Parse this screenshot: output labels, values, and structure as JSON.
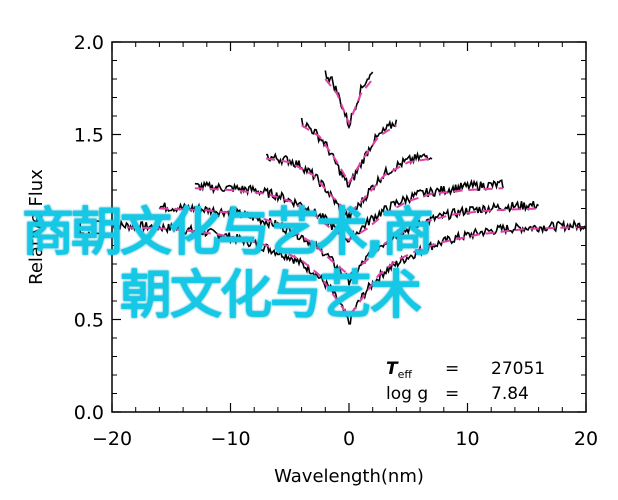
{
  "chart_data": {
    "type": "line",
    "xlabel": "Wavelength(nm)",
    "ylabel": "Relative Flux",
    "xlim": [
      -20,
      20
    ],
    "ylim": [
      0.0,
      2.0
    ],
    "x_ticks": [
      "−20",
      "−10",
      "0",
      "10",
      "20"
    ],
    "y_ticks": [
      "0.0",
      "0.5",
      "1.0",
      "1.5",
      "2.0"
    ],
    "grid": false,
    "annotation": {
      "teff_label": "T",
      "teff_sub": "eff",
      "teff_eq": "=",
      "teff_value": "27051",
      "logg_label": "log g",
      "logg_eq": "=",
      "logg_value": "7.84"
    },
    "series": [
      {
        "color": "#000000",
        "style": "solid",
        "lines": [
          {
            "x": [
              -20,
              -16,
              -13,
              -11,
              -9,
              -7,
              -5,
              -3,
              -1.5,
              -0.5,
              0,
              0.5,
              1.5,
              3,
              5,
              7,
              9,
              11,
              13,
              16,
              20
            ],
            "y": [
              1.01,
              1.0,
              0.98,
              0.96,
              0.93,
              0.89,
              0.84,
              0.76,
              0.66,
              0.55,
              0.48,
              0.56,
              0.66,
              0.76,
              0.84,
              0.9,
              0.94,
              0.97,
              0.99,
              1.0,
              1.01
            ]
          },
          {
            "x": [
              -16,
              -13,
              -10,
              -8,
              -6,
              -4,
              -2,
              -1,
              0,
              1,
              2,
              4,
              6,
              8,
              10,
              13,
              16
            ],
            "y": [
              1.11,
              1.1,
              1.08,
              1.05,
              1.01,
              0.95,
              0.86,
              0.78,
              0.71,
              0.79,
              0.87,
              0.96,
              1.02,
              1.06,
              1.09,
              1.11,
              1.12
            ]
          },
          {
            "x": [
              -13,
              -10,
              -8,
              -6,
              -4,
              -2,
              -1,
              0,
              1,
              2,
              4,
              6,
              8,
              10,
              13
            ],
            "y": [
              1.22,
              1.21,
              1.2,
              1.17,
              1.12,
              1.04,
              0.98,
              0.93,
              0.99,
              1.05,
              1.13,
              1.18,
              1.2,
              1.22,
              1.23
            ]
          },
          {
            "x": [
              -7,
              -5,
              -4,
              -3,
              -2,
              -1,
              0,
              1,
              2,
              3,
              4,
              5,
              7
            ],
            "y": [
              1.38,
              1.36,
              1.33,
              1.28,
              1.21,
              1.12,
              1.05,
              1.13,
              1.22,
              1.29,
              1.33,
              1.36,
              1.39
            ]
          },
          {
            "x": [
              -4,
              -3,
              -2,
              -1,
              -0.5,
              0,
              0.5,
              1,
              2,
              3,
              4
            ],
            "y": [
              1.57,
              1.52,
              1.45,
              1.33,
              1.27,
              1.22,
              1.28,
              1.34,
              1.46,
              1.52,
              1.57
            ]
          },
          {
            "x": [
              -2,
              -1.5,
              -1,
              -0.5,
              0,
              0.5,
              1,
              1.5,
              2
            ],
            "y": [
              1.83,
              1.8,
              1.73,
              1.64,
              1.55,
              1.65,
              1.74,
              1.8,
              1.83
            ]
          }
        ]
      },
      {
        "color": "#e040a8",
        "style": "dashed",
        "lines": [
          {
            "x": [
              -20,
              -15,
              -11,
              -8,
              -6,
              -4,
              -2.5,
              -1.5,
              -0.5,
              0,
              0.5,
              1.5,
              2.5,
              4,
              6,
              8,
              11,
              15,
              20
            ],
            "y": [
              1.0,
              0.99,
              0.96,
              0.92,
              0.88,
              0.82,
              0.74,
              0.65,
              0.56,
              0.52,
              0.56,
              0.65,
              0.74,
              0.82,
              0.88,
              0.92,
              0.96,
              0.99,
              1.0
            ]
          },
          {
            "x": [
              -16,
              -12,
              -9,
              -7,
              -5,
              -3,
              -1.5,
              0,
              1.5,
              3,
              5,
              7,
              9,
              12,
              16
            ],
            "y": [
              1.1,
              1.09,
              1.07,
              1.04,
              0.99,
              0.91,
              0.82,
              0.74,
              0.82,
              0.91,
              0.99,
              1.04,
              1.07,
              1.09,
              1.1
            ]
          },
          {
            "x": [
              -13,
              -10,
              -7,
              -5,
              -3,
              -1.5,
              0,
              1.5,
              3,
              5,
              7,
              10,
              13
            ],
            "y": [
              1.21,
              1.2,
              1.18,
              1.14,
              1.07,
              0.99,
              0.93,
              0.99,
              1.07,
              1.14,
              1.18,
              1.2,
              1.21
            ]
          },
          {
            "x": [
              -7,
              -5,
              -3,
              -1.5,
              0,
              1.5,
              3,
              5,
              7
            ],
            "y": [
              1.37,
              1.35,
              1.28,
              1.17,
              1.07,
              1.17,
              1.28,
              1.35,
              1.37
            ]
          },
          {
            "x": [
              -4,
              -2.5,
              -1.2,
              0,
              1.2,
              2.5,
              4
            ],
            "y": [
              1.55,
              1.49,
              1.37,
              1.24,
              1.37,
              1.49,
              1.55
            ]
          },
          {
            "x": [
              -2,
              -1,
              0,
              1,
              2
            ],
            "y": [
              1.8,
              1.72,
              1.56,
              1.72,
              1.8
            ]
          }
        ]
      }
    ]
  },
  "watermark": {
    "line1": "商朝文化与艺术,商",
    "line2": "朝文化与艺术"
  }
}
